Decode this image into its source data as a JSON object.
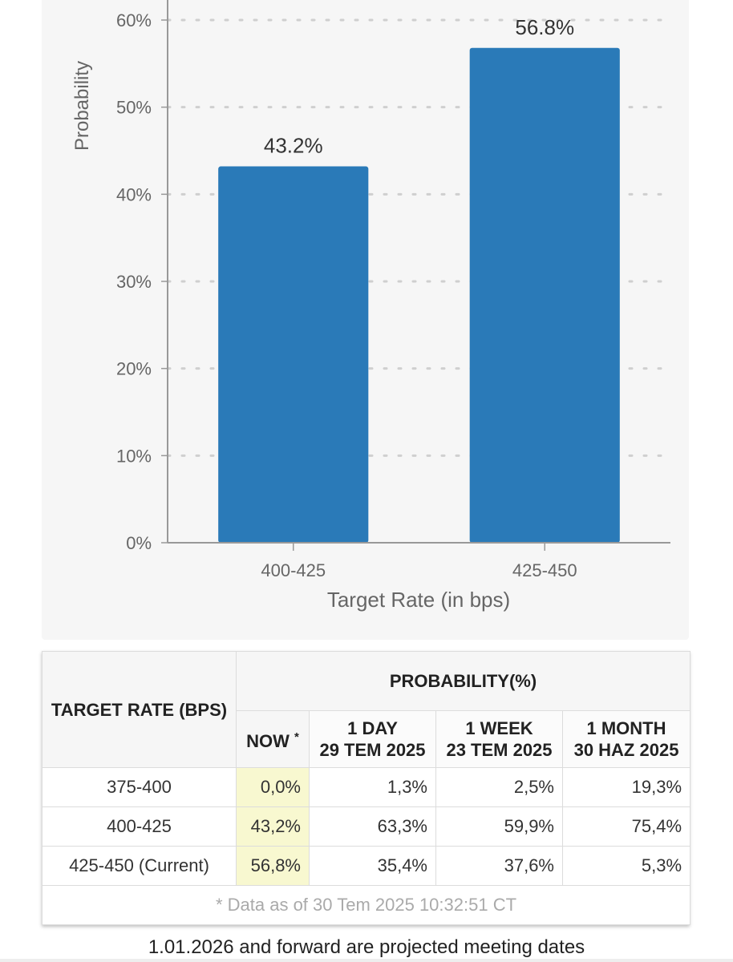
{
  "chart_data": {
    "type": "bar",
    "categories": [
      "400-425",
      "425-450"
    ],
    "values": [
      43.2,
      56.8
    ],
    "data_labels": [
      "43.2%",
      "56.8%"
    ],
    "xlabel": "Target Rate (in bps)",
    "ylabel": "Probability",
    "ylim": [
      0,
      60
    ],
    "yticks": [
      "0%",
      "10%",
      "20%",
      "30%",
      "40%",
      "50%",
      "60%"
    ],
    "grid": true,
    "bar_color": "#2a7ab8"
  },
  "table": {
    "target_rate_header": "TARGET RATE (BPS)",
    "probability_header": "PROBABILITY(%)",
    "now_header": "NOW",
    "now_marker": "*",
    "col_1day": {
      "line1": "1 DAY",
      "line2": "29 TEM 2025"
    },
    "col_1week": {
      "line1": "1 WEEK",
      "line2": "23 TEM 2025"
    },
    "col_1month": {
      "line1": "1 MONTH",
      "line2": "30 HAZ 2025"
    },
    "rows": [
      {
        "rate": "375-400",
        "now": "0,0%",
        "day": "1,3%",
        "week": "2,5%",
        "month": "19,3%"
      },
      {
        "rate": "400-425",
        "now": "43,2%",
        "day": "63,3%",
        "week": "59,9%",
        "month": "75,4%"
      },
      {
        "rate": "425-450 (Current)",
        "now": "56,8%",
        "day": "35,4%",
        "week": "37,6%",
        "month": "5,3%"
      }
    ],
    "footnote": "* Data as of 30 Tem 2025 10:32:51 CT",
    "now_highlight_color": "#f8f8d0"
  },
  "bottom_note": "1.01.2026 and forward are projected meeting dates"
}
